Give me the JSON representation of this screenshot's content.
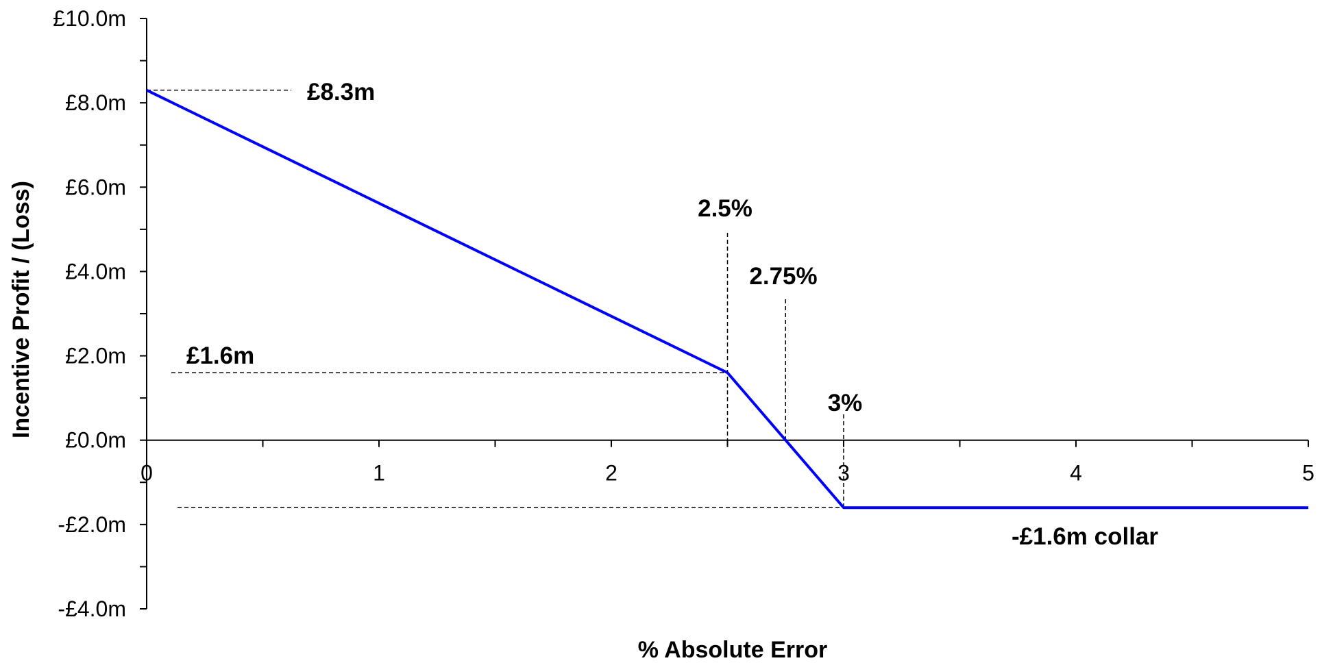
{
  "chart_data": {
    "type": "line",
    "xlabel": "% Absolute Error",
    "ylabel": "Incentive Profit / (Loss)",
    "xlim": [
      0,
      5
    ],
    "ylim": [
      -4,
      10
    ],
    "x_ticks": [
      0,
      1,
      2,
      3,
      4,
      5
    ],
    "x_tick_labels": [
      "0",
      "1",
      "2",
      "3",
      "4",
      "5"
    ],
    "y_ticks": [
      10,
      8,
      6,
      4,
      2,
      0,
      -2,
      -4
    ],
    "y_tick_labels": [
      "£10.0m",
      "£8.0m",
      "£6.0m",
      "£4.0m",
      "£2.0m",
      "£0.0m",
      "-£2.0m",
      "-£4.0m"
    ],
    "grid": false,
    "series": [
      {
        "color": "#0000ff",
        "x": [
          0,
          2.5,
          2.75,
          3,
          5
        ],
        "y": [
          8.3,
          1.6,
          0,
          -1.6,
          -1.6
        ]
      }
    ],
    "annotations": {
      "peak": {
        "text": "£8.3m",
        "x": 0,
        "y": 8.3
      },
      "deadband": {
        "text": "£1.6m",
        "x": 2.5,
        "y": 1.6
      },
      "knee": {
        "text": "2.5%",
        "x": 2.5
      },
      "zero_cross": {
        "text": "2.75%",
        "x": 2.75
      },
      "floor_start": {
        "text": "3%",
        "x": 3
      },
      "collar": {
        "text": "-£1.6m collar",
        "y": -1.6
      }
    }
  }
}
